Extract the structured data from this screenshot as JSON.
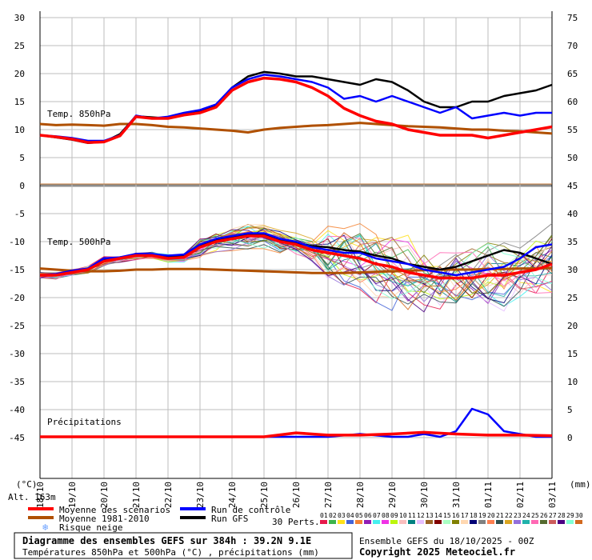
{
  "chart_data": {
    "type": "line",
    "dates": [
      "19/10",
      "20/10",
      "21/10",
      "22/10",
      "23/10",
      "24/10",
      "25/10",
      "26/10",
      "27/10",
      "28/10",
      "29/10",
      "30/10",
      "31/10",
      "01/11",
      "02/11",
      "03/11"
    ],
    "first_date": "18/10",
    "left_axis": {
      "unit": "(°C)",
      "ticks": [
        "30",
        "25",
        "20",
        "15",
        "10",
        "5",
        "0",
        "-5",
        "-10",
        "-15",
        "-20",
        "-25",
        "-30",
        "-35",
        "-40",
        "-45"
      ]
    },
    "right_axis": {
      "unit": "(mm)",
      "ticks_t850": [
        "75",
        "70",
        "65",
        "60",
        "55",
        "50",
        "45"
      ],
      "ticks_t500": [
        "40",
        "35",
        "30",
        "25",
        "20",
        "15",
        "10",
        "5",
        "0"
      ]
    },
    "panel_labels": {
      "t850": "Temp. 850hPa",
      "t500": "Temp. 500hPa",
      "precip": "Précipitations"
    },
    "altitude": "Alt. 163m",
    "t850": {
      "x": [
        0,
        0.5,
        1,
        1.5,
        2,
        2.5,
        3,
        3.5,
        4,
        4.5,
        5,
        5.5,
        6,
        6.5,
        7,
        7.5,
        8,
        8.5,
        9,
        9.5,
        10,
        10.5,
        11,
        11.5,
        12,
        12.5,
        13,
        13.5,
        14,
        14.5,
        15,
        15.5,
        16
      ],
      "mean": [
        9,
        8.7,
        8.3,
        7.7,
        7.8,
        8.9,
        12.3,
        12.0,
        12.0,
        12.6,
        13.0,
        14.0,
        17.0,
        18.5,
        19.2,
        19.0,
        18.5,
        17.5,
        16.0,
        13.8,
        12.5,
        11.5,
        11.0,
        10.0,
        9.5,
        9.0,
        9.0,
        9.0,
        8.5,
        9.0,
        9.5,
        10.0,
        10.5
      ],
      "control": [
        9,
        8.8,
        8.5,
        8.0,
        8.0,
        9.0,
        12.5,
        12.0,
        12.3,
        13.0,
        13.5,
        14.5,
        17.5,
        19.0,
        19.8,
        19.5,
        19.0,
        18.5,
        17.5,
        15.5,
        16.0,
        15.0,
        16.0,
        15.0,
        14.0,
        13.0,
        14.0,
        12.0,
        12.5,
        13.0,
        12.5,
        13.0,
        13.0
      ],
      "gfs": [
        9,
        8.6,
        8.2,
        7.6,
        7.8,
        9.2,
        12.4,
        12.2,
        12.0,
        12.7,
        13.2,
        14.2,
        17.5,
        19.5,
        20.3,
        20.0,
        19.5,
        19.5,
        19.0,
        18.5,
        18.0,
        19.0,
        18.5,
        17.0,
        15.0,
        14.0,
        14.0,
        15.0,
        15.0,
        16.0,
        16.5,
        17.0,
        18.0
      ],
      "climo": [
        11,
        10.8,
        10.9,
        10.8,
        10.7,
        11.0,
        11.0,
        10.8,
        10.5,
        10.4,
        10.2,
        10.0,
        9.8,
        9.5,
        10.0,
        10.3,
        10.5,
        10.7,
        10.8,
        11.0,
        11.2,
        11.0,
        10.8,
        10.6,
        10.5,
        10.4,
        10.2,
        10.0,
        10.0,
        9.8,
        9.7,
        9.5,
        9.3
      ]
    },
    "t500": {
      "x": [
        0,
        0.5,
        1,
        1.5,
        2,
        2.5,
        3,
        3.5,
        4,
        4.5,
        5,
        5.5,
        6,
        6.5,
        7,
        7.5,
        8,
        8.5,
        9,
        9.5,
        10,
        10.5,
        11,
        11.5,
        12,
        12.5,
        13,
        13.5,
        14,
        14.5,
        15,
        15.5,
        16
      ],
      "mean": [
        -16,
        -16,
        -15.5,
        -15,
        -13.5,
        -13,
        -12.5,
        -12.5,
        -13.0,
        -12.8,
        -11,
        -10,
        -9.5,
        -9.0,
        -9.0,
        -10.0,
        -10.5,
        -11.5,
        -12.0,
        -12.5,
        -13.0,
        -14.0,
        -14.5,
        -15.5,
        -16.0,
        -16.5,
        -16.5,
        -16.5,
        -16.0,
        -16.0,
        -15.5,
        -15.0,
        -14.0
      ],
      "control": [
        -16,
        -15.8,
        -15.2,
        -14.8,
        -13,
        -12.8,
        -12.2,
        -12.2,
        -12.5,
        -12.3,
        -10.5,
        -9.5,
        -9.0,
        -8.5,
        -8.5,
        -9.5,
        -10.0,
        -11.0,
        -11.5,
        -12.0,
        -12.0,
        -13.0,
        -13.5,
        -14.0,
        -15.0,
        -15.5,
        -16.0,
        -15.5,
        -15.0,
        -14.5,
        -13.0,
        -11.0,
        -10.5
      ],
      "gfs": [
        -16,
        -15.9,
        -15.4,
        -14.9,
        -13.2,
        -13.0,
        -12.4,
        -12.4,
        -12.8,
        -12.6,
        -10.8,
        -9.8,
        -9.3,
        -8.8,
        -8.6,
        -9.8,
        -10.2,
        -10.8,
        -11.0,
        -11.5,
        -11.8,
        -12.5,
        -13.0,
        -14.0,
        -14.5,
        -15.0,
        -14.5,
        -13.5,
        -12.5,
        -11.5,
        -12.0,
        -13.0,
        -14.0
      ],
      "climo": [
        -14.8,
        -15.0,
        -15.2,
        -15.3,
        -15.3,
        -15.2,
        -15.0,
        -15.0,
        -14.9,
        -14.9,
        -14.9,
        -15.0,
        -15.1,
        -15.2,
        -15.3,
        -15.4,
        -15.5,
        -15.6,
        -15.6,
        -15.6,
        -15.5,
        -15.4,
        -15.3,
        -15.2,
        -15.1,
        -15.0,
        -15.0,
        -15.0,
        -14.9,
        -14.9,
        -14.8,
        -14.8,
        -14.7
      ]
    },
    "precip": {
      "ymax_mm": 40,
      "control_x": [
        0,
        1,
        2,
        3,
        4,
        5,
        6,
        7,
        8,
        9,
        10,
        11,
        11.5,
        12,
        12.5,
        13,
        13.5,
        14,
        14.5,
        15,
        15.5,
        16
      ],
      "control": [
        0,
        0,
        0,
        0,
        0,
        0,
        0,
        0,
        0,
        0,
        0.5,
        0,
        0,
        0.5,
        0,
        1,
        5,
        4,
        1,
        0.5,
        0,
        0
      ],
      "mean_x": [
        0,
        1,
        2,
        3,
        4,
        5,
        6,
        7,
        8,
        9,
        10,
        11,
        12,
        13,
        14,
        15,
        16
      ],
      "mean": [
        0,
        0,
        0,
        0,
        0,
        0,
        0,
        0,
        0.7,
        0.3,
        0.3,
        0.5,
        0.8,
        0.5,
        0.3,
        0.3,
        0.2
      ]
    },
    "legend": [
      {
        "label": "Moyenne des scénarios",
        "color": "#ff0000"
      },
      {
        "label": "Run de contrôle",
        "color": "#0000ff"
      },
      {
        "label": "Moyenne 1981-2010",
        "color": "#b05000"
      },
      {
        "label": "Run GFS",
        "color": "#000000"
      },
      {
        "label": "Risque neige",
        "color": "#6aa0ff"
      }
    ],
    "perts_label": "30 Perts.",
    "pert_numbers": [
      "01",
      "02",
      "03",
      "04",
      "05",
      "06",
      "07",
      "08",
      "09",
      "10",
      "11",
      "12",
      "13",
      "14",
      "15",
      "16",
      "17",
      "18",
      "19",
      "20",
      "21",
      "22",
      "23",
      "24",
      "25",
      "26",
      "27",
      "28",
      "29",
      "30"
    ],
    "pert_colors": [
      "#e6194b",
      "#3cb44b",
      "#ffe119",
      "#4363d8",
      "#f58231",
      "#911eb4",
      "#46f0f0",
      "#f032e6",
      "#bcf60c",
      "#fabebe",
      "#008080",
      "#e6beff",
      "#9a6324",
      "#800000",
      "#aaffc3",
      "#808000",
      "#ffd8b1",
      "#000075",
      "#808080",
      "#ff7f50",
      "#2f4f4f",
      "#daa520",
      "#9370db",
      "#20b2aa",
      "#ff69b4",
      "#556b2f",
      "#cd5c5c",
      "#4b0082",
      "#7fffd4",
      "#d2691e"
    ],
    "footer": {
      "title": "Diagramme des ensembles GEFS sur 384h : 39.2N 9.1E",
      "subtitle": "Températures 850hPa et 500hPa (°C) , précipitations (mm)",
      "run": "Ensemble GEFS du 18/10/2025 - 00Z",
      "copyright": "Copyright 2025 Meteociel.fr"
    }
  }
}
